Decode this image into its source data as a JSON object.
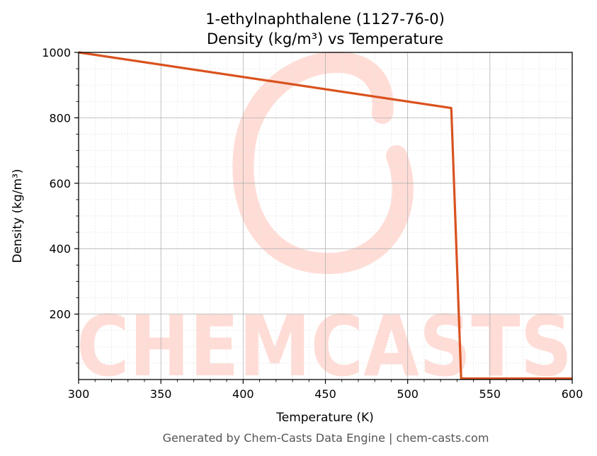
{
  "chart_data": {
    "type": "line",
    "title": "1-ethylnaphthalene (1127-76-0)",
    "subtitle": "Density (kg/m³) vs Temperature",
    "xlabel": "Temperature (K)",
    "ylabel": "Density (kg/m³)",
    "xlim": [
      300,
      600
    ],
    "ylim": [
      0,
      1000
    ],
    "x_ticks": [
      300,
      350,
      400,
      450,
      500,
      550,
      600
    ],
    "y_ticks": [
      200,
      400,
      600,
      800,
      1000
    ],
    "grid": true,
    "legend": "none",
    "series": [
      {
        "color": "#d9521f",
        "x": [
          300,
          526.5,
          532.5,
          600
        ],
        "y": [
          1000,
          830,
          3,
          3
        ]
      }
    ]
  },
  "watermark": {
    "text": "CHEMCASTS",
    "color": "#ffd7cf"
  },
  "footer": "Generated by Chem-Casts Data Engine | chem-casts.com"
}
